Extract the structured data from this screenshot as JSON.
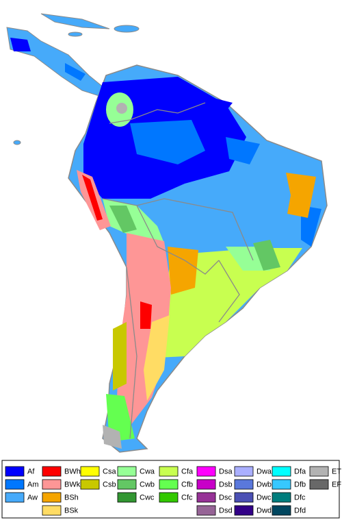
{
  "legend": {
    "columns": [
      [
        {
          "label": "Af",
          "color": "#0000fe"
        },
        {
          "label": "Am",
          "color": "#0077ff"
        },
        {
          "label": "Aw",
          "color": "#46aafa"
        }
      ],
      [
        {
          "label": "BWh",
          "color": "#fe0000"
        },
        {
          "label": "BWk",
          "color": "#fe9696"
        },
        {
          "label": "BSh",
          "color": "#f5a500"
        },
        {
          "label": "BSk",
          "color": "#ffdc64"
        }
      ],
      [
        {
          "label": "Csa",
          "color": "#ffff00"
        },
        {
          "label": "Csb",
          "color": "#c8c800"
        }
      ],
      [
        {
          "label": "Cwa",
          "color": "#96ff96"
        },
        {
          "label": "Cwb",
          "color": "#63c764"
        },
        {
          "label": "Cwc",
          "color": "#329632"
        }
      ],
      [
        {
          "label": "Cfa",
          "color": "#c8ff50"
        },
        {
          "label": "Cfb",
          "color": "#64ff50"
        },
        {
          "label": "Cfc",
          "color": "#32c800"
        }
      ],
      [
        {
          "label": "Dsa",
          "color": "#ff00fe"
        },
        {
          "label": "Dsb",
          "color": "#c800c8"
        },
        {
          "label": "Dsc",
          "color": "#963296"
        },
        {
          "label": "Dsd",
          "color": "#966496"
        }
      ],
      [
        {
          "label": "Dwa",
          "color": "#aaafff"
        },
        {
          "label": "Dwb",
          "color": "#5a78dc"
        },
        {
          "label": "Dwc",
          "color": "#4b50b4"
        },
        {
          "label": "Dwd",
          "color": "#320087"
        }
      ],
      [
        {
          "label": "Dfa",
          "color": "#00ffff"
        },
        {
          "label": "Dfb",
          "color": "#37c8ff"
        },
        {
          "label": "Dfc",
          "color": "#007d7d"
        },
        {
          "label": "Dfd",
          "color": "#00465f"
        }
      ],
      [
        {
          "label": "ET",
          "color": "#b2b2b2"
        },
        {
          "label": "EF",
          "color": "#686868"
        }
      ]
    ]
  }
}
